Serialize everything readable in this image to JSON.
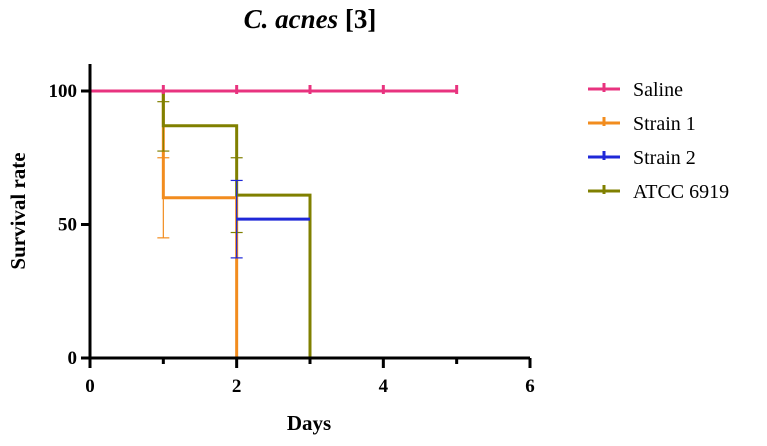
{
  "chart_data": {
    "type": "line",
    "step": true,
    "title_italic": "C. acnes",
    "title_rest": " [3]",
    "xlabel": "Days",
    "ylabel": "Survival rate",
    "xlim": [
      0,
      6
    ],
    "ylim": [
      0,
      100
    ],
    "xticks": [
      0,
      2,
      4,
      6
    ],
    "xticks_minor": [
      1,
      3,
      5
    ],
    "yticks": [
      0,
      50,
      100
    ],
    "grid": false,
    "legend_position": "right",
    "series": [
      {
        "name": "Saline",
        "color": "#e8337f",
        "x": [
          0,
          5
        ],
        "y": [
          100,
          100
        ],
        "censor_x": [
          1,
          2,
          3,
          4,
          5
        ],
        "error_bars": []
      },
      {
        "name": "Strain 1",
        "color": "#f28c1e",
        "x": [
          0,
          1,
          2,
          2
        ],
        "y": [
          100,
          60,
          60,
          0
        ],
        "censor_x": [],
        "error_bars": [
          {
            "x": 1,
            "low": 45,
            "high": 75
          }
        ]
      },
      {
        "name": "Strain 2",
        "color": "#1f28d8",
        "x": [
          2,
          3
        ],
        "y": [
          52,
          52
        ],
        "censor_x": [],
        "error_bars": [
          {
            "x": 2,
            "low": 37.5,
            "high": 66.5
          }
        ]
      },
      {
        "name": "ATCC 6919",
        "color": "#808000",
        "x": [
          0,
          1,
          2,
          3,
          3
        ],
        "y": [
          100,
          87,
          61,
          61,
          0
        ],
        "censor_x": [],
        "error_bars": [
          {
            "x": 1,
            "low": 77.5,
            "high": 96
          },
          {
            "x": 2,
            "low": 47,
            "high": 75
          }
        ]
      }
    ]
  }
}
